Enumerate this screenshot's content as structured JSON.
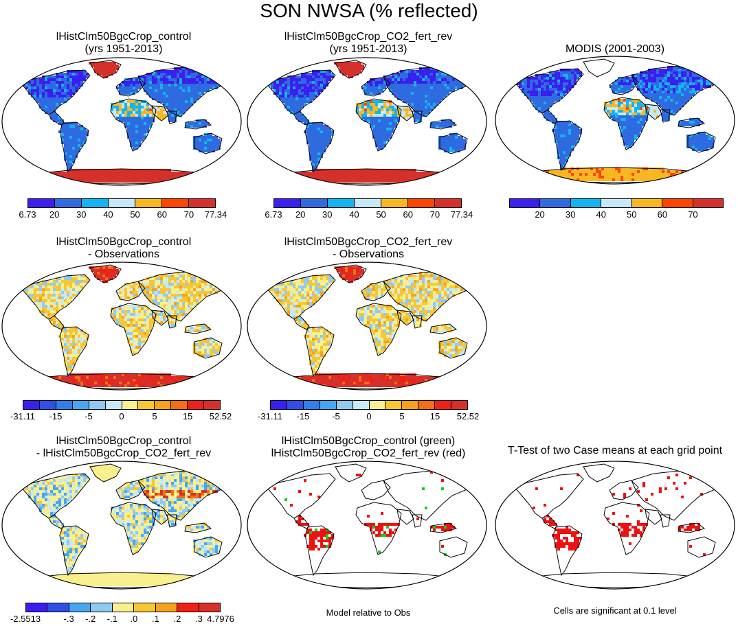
{
  "title": "SON NWSA (% reflected)",
  "palettes": {
    "abs": [
      "#3a1ff0",
      "#2f6be0",
      "#12b4f2",
      "#c7e8f7",
      "#f8b721",
      "#ff4400",
      "#d6302b"
    ],
    "diff": [
      "#3a1ff0",
      "#2f4fe6",
      "#2f7fe8",
      "#47a6f2",
      "#8fcaf3",
      "#c7e8f7",
      "#f9ef8c",
      "#f8c632",
      "#f7a21c",
      "#f46e12",
      "#ef2116",
      "#d6302b"
    ],
    "sig": [
      "#12cf12",
      "#ef1010"
    ]
  },
  "panels": [
    {
      "id": "p1",
      "title": [
        "lHistClm50BgcCrop_control",
        "(yrs 1951-2013)"
      ],
      "map_style": "abs",
      "colorbar": {
        "palette": "abs",
        "labels": [
          "6.73",
          "20",
          "30",
          "40",
          "50",
          "60",
          "70",
          "77.34"
        ],
        "label_slots": [
          0,
          1,
          2,
          3,
          4,
          5,
          6,
          7
        ]
      }
    },
    {
      "id": "p2",
      "title": [
        "lHistClm50BgcCrop_CO2_fert_rev",
        "(yrs 1951-2013)"
      ],
      "map_style": "abs",
      "colorbar": {
        "palette": "abs",
        "labels": [
          "6.73",
          "20",
          "30",
          "40",
          "50",
          "60",
          "70",
          "77.34"
        ],
        "label_slots": [
          0,
          1,
          2,
          3,
          4,
          5,
          6,
          7
        ]
      }
    },
    {
      "id": "p3",
      "title": [
        "MODIS (2001-2003)"
      ],
      "map_style": "obs",
      "colorbar": {
        "palette": "abs",
        "labels": [
          "20",
          "30",
          "40",
          "50",
          "60",
          "70"
        ],
        "label_slots": [
          1,
          2,
          3,
          4,
          5,
          6
        ]
      }
    },
    {
      "id": "p4",
      "title": [
        "lHistClm50BgcCrop_control",
        "- Observations"
      ],
      "map_style": "bias",
      "colorbar": {
        "palette": "diff",
        "labels": [
          "-31.11",
          "-15",
          "-5",
          "0",
          "5",
          "15",
          "52.52"
        ],
        "label_slots": [
          0,
          2,
          4,
          6,
          8,
          10,
          12
        ]
      }
    },
    {
      "id": "p5",
      "title": [
        "lHistClm50BgcCrop_CO2_fert_rev",
        "- Observations"
      ],
      "map_style": "bias",
      "colorbar": {
        "palette": "diff",
        "labels": [
          "-31.11",
          "-15",
          "-5",
          "0",
          "5",
          "15",
          "52.52"
        ],
        "label_slots": [
          0,
          2,
          4,
          6,
          8,
          10,
          12
        ]
      }
    },
    {
      "id": "p7",
      "title": [
        "lHistClm50BgcCrop_control",
        "- lHistClm50BgcCrop_CO2_fert_rev"
      ],
      "map_style": "casediff",
      "colorbar": {
        "palette": "diff",
        "labels": [
          "-2.5513",
          "-.3",
          "-.2",
          "-.1",
          ".0",
          ".1",
          ".2",
          ".3",
          "4.7976"
        ],
        "label_slots": [
          0,
          2,
          3,
          4,
          5,
          6,
          7,
          8,
          9
        ],
        "segments": 9
      }
    },
    {
      "id": "p8",
      "title": [
        "lHistClm50BgcCrop_control (green)",
        "lHistClm50BgcCrop_CO2_fert_rev (red)"
      ],
      "map_style": "sig2"
    },
    {
      "id": "p9",
      "title": [
        "T-Test of two Case means at each grid point"
      ],
      "map_style": "ttest"
    }
  ],
  "notes": {
    "model_rel_obs": "Model relative to Obs",
    "significance": "Cells are significant at 0.1 level"
  },
  "chart_data": [
    {
      "type": "heatmap",
      "title": "lHistClm50BgcCrop_control (yrs 1951-2013)",
      "projection": "Robinson global map",
      "colorbar_levels": [
        6.73,
        20,
        30,
        40,
        50,
        60,
        70,
        77.34
      ],
      "features": {
        "greenland": "~77",
        "antarctica": "~77",
        "north_africa_deserts": "~40-60",
        "most_land": "~20-30",
        "boreal_forest": "~6.73-20"
      }
    },
    {
      "type": "heatmap",
      "title": "lHistClm50BgcCrop_CO2_fert_rev (yrs 1951-2013)",
      "projection": "Robinson global map",
      "colorbar_levels": [
        6.73,
        20,
        30,
        40,
        50,
        60,
        70,
        77.34
      ],
      "features": {
        "greenland": "~77",
        "antarctica": "~77",
        "north_africa_deserts": "~40-60",
        "most_land": "~20-30",
        "boreal_forest": "~6.73-20"
      }
    },
    {
      "type": "heatmap",
      "title": "MODIS (2001-2003)",
      "projection": "Robinson global map",
      "colorbar_levels": [
        20,
        30,
        40,
        50,
        60,
        70
      ],
      "features": {
        "antarctica": "~50-60",
        "sahara": "~40-60",
        "most_land": "~20-30",
        "boreal": "~10-20"
      }
    },
    {
      "type": "heatmap",
      "title": "lHistClm50BgcCrop_control - Observations",
      "projection": "Robinson global map",
      "colorbar_levels": [
        -31.11,
        -15,
        -5,
        0,
        5,
        15,
        52.52
      ],
      "features": {
        "antarctica": "~15-52",
        "greenland": "~15-52",
        "most_land": "~0-5 positive bias"
      }
    },
    {
      "type": "heatmap",
      "title": "lHistClm50BgcCrop_CO2_fert_rev - Observations",
      "projection": "Robinson global map",
      "colorbar_levels": [
        -31.11,
        -15,
        -5,
        0,
        5,
        15,
        52.52
      ],
      "features": {
        "antarctica": "~15-52",
        "greenland": "~15-52",
        "most_land": "~0-5 positive bias"
      }
    },
    {
      "type": "heatmap",
      "title": "lHistClm50BgcCrop_control - lHistClm50BgcCrop_CO2_fert_rev",
      "projection": "Robinson global map",
      "colorbar_levels": [
        -2.5513,
        -0.3,
        -0.2,
        -0.1,
        0.0,
        0.1,
        0.2,
        0.3,
        4.7976
      ],
      "features": {
        "antarctica": "~0.0-0.1",
        "greenland": "~0.0-0.1",
        "asia_band": "~0.3"
      }
    },
    {
      "type": "heatmap",
      "title": "lHistClm50BgcCrop_control (green) lHistClm50BgcCrop_CO2_fert_rev (red)",
      "projection": "Robinson global map",
      "features": {
        "amazon": "red",
        "central_africa": "red",
        "se_asia": "red"
      }
    },
    {
      "type": "heatmap",
      "title": "T-Test of two Case means at each grid point",
      "projection": "Robinson global map",
      "features": {
        "amazon": "significant",
        "central_africa": "significant",
        "se_asia": "significant",
        "eurasia_north": "significant"
      }
    }
  ]
}
